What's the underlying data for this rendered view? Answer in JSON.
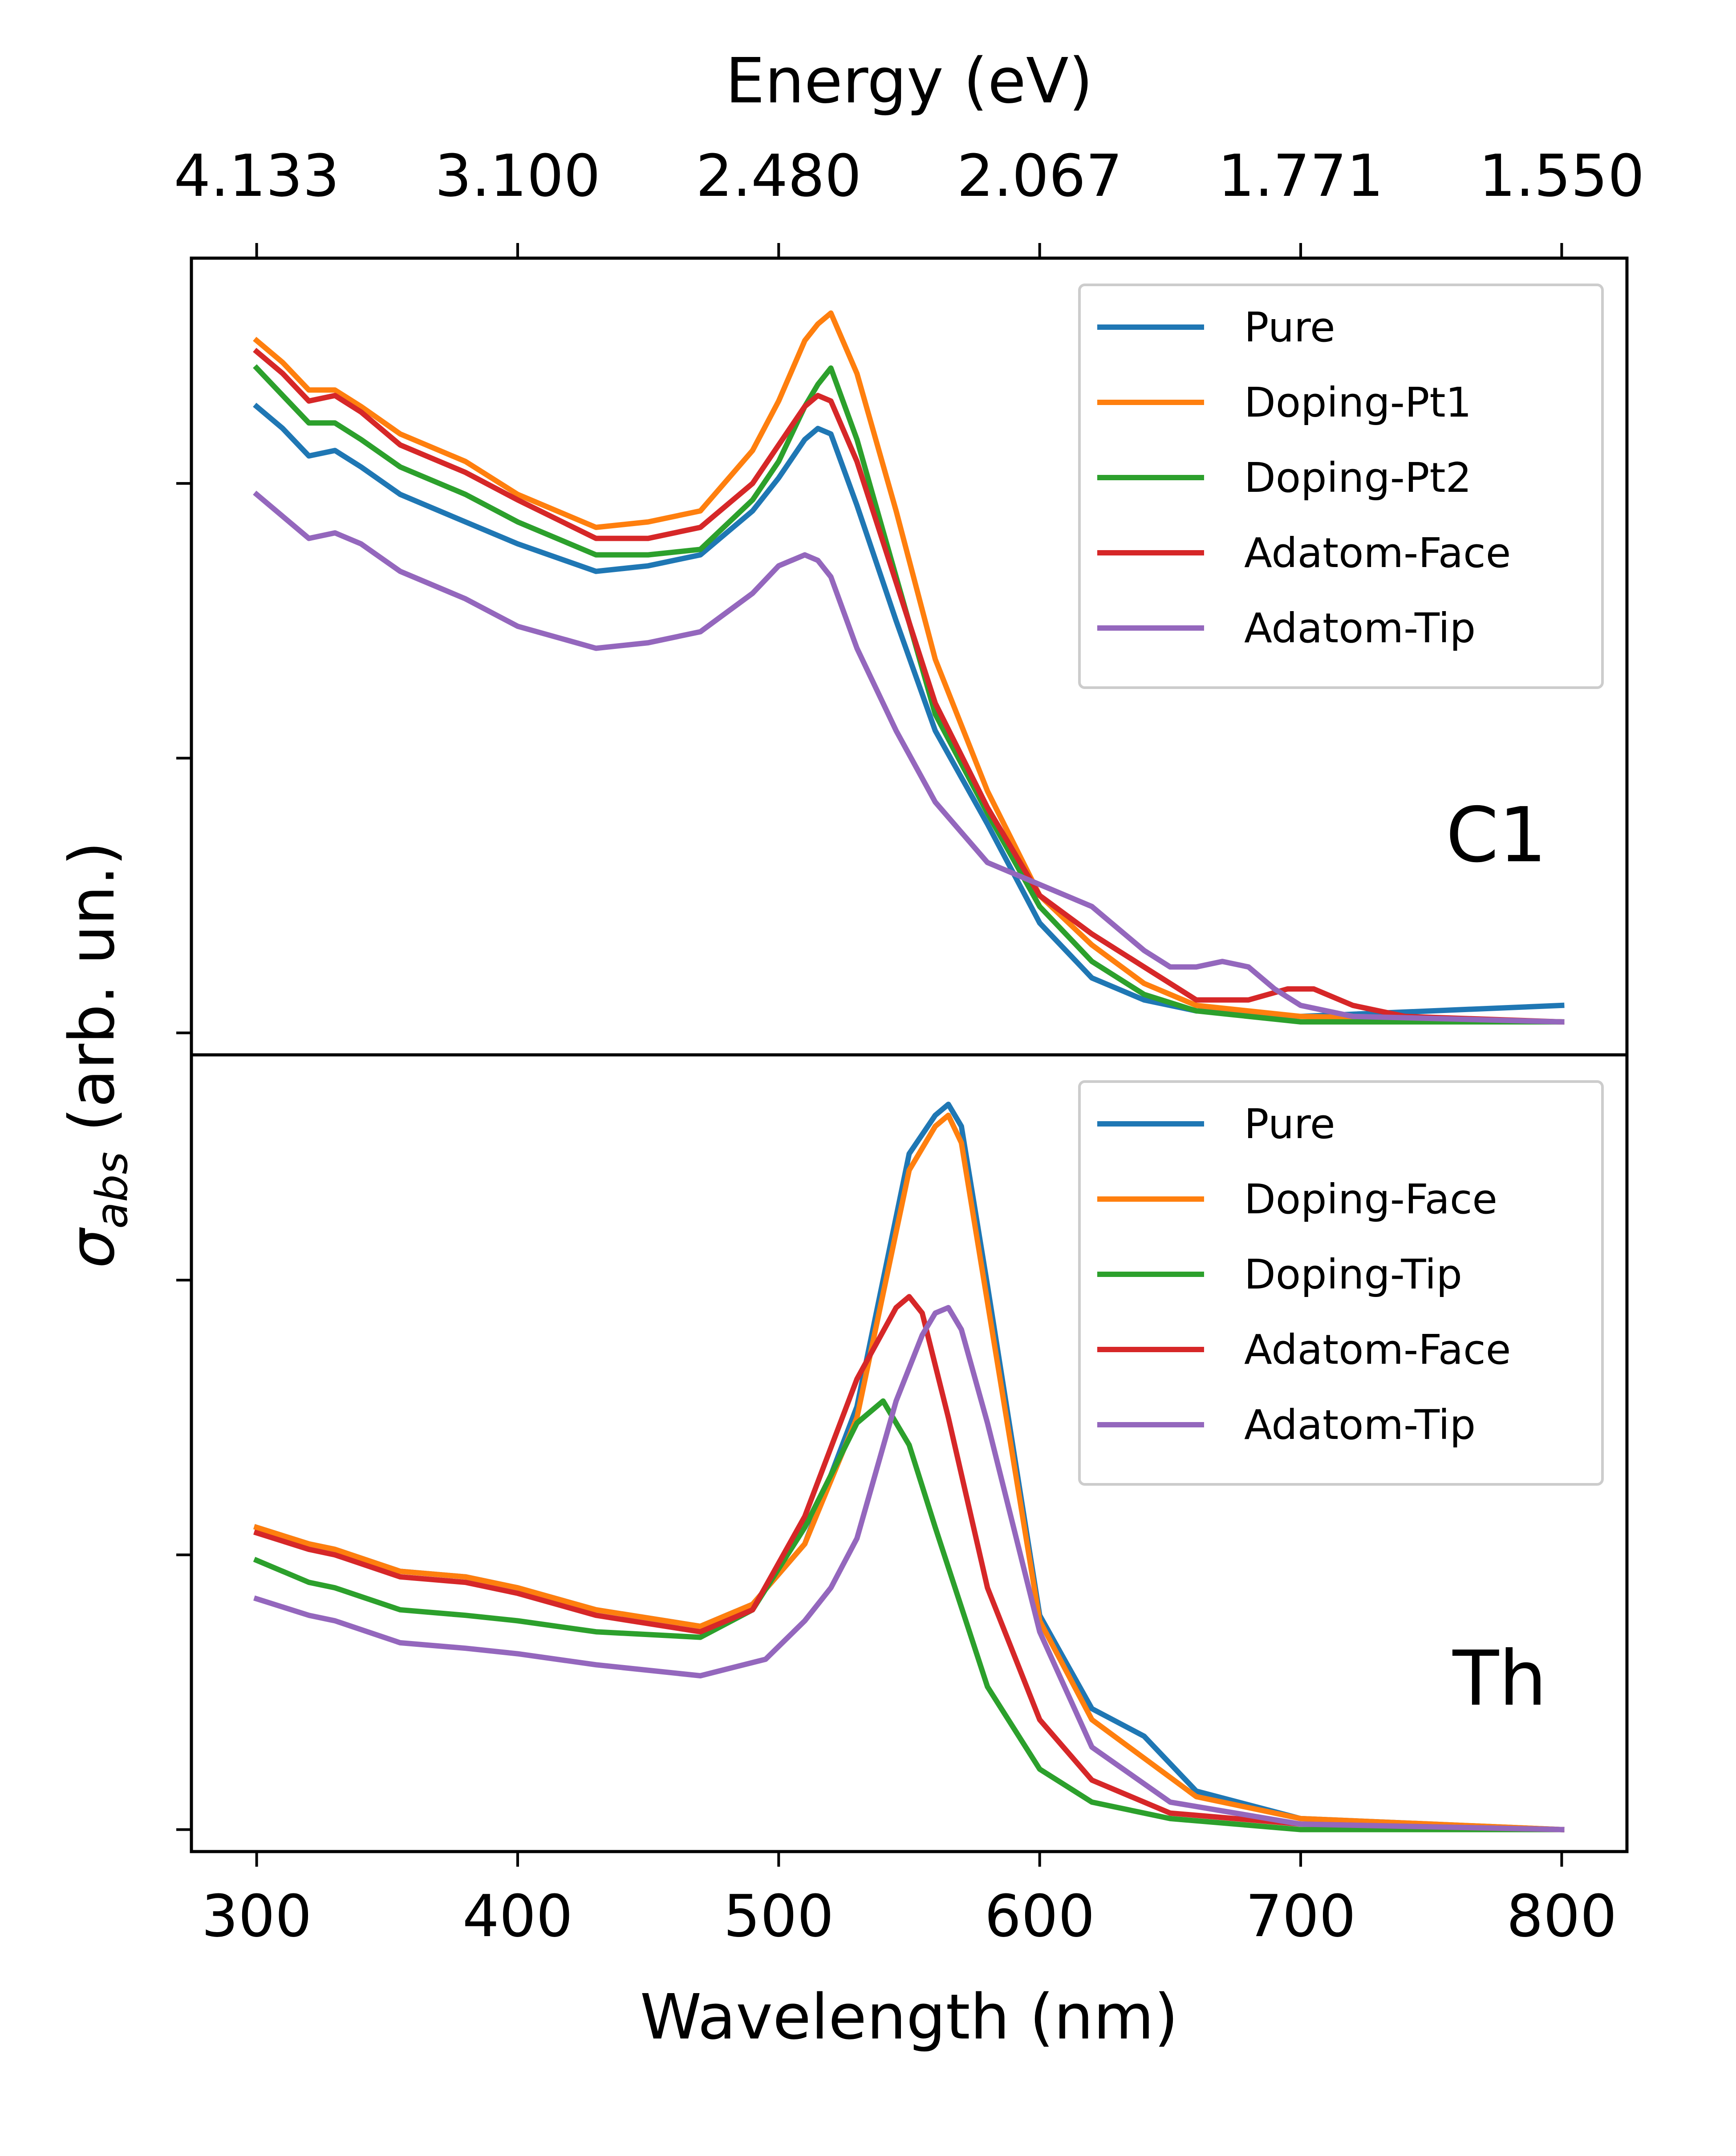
{
  "chart_data": [
    {
      "type": "line",
      "panel_label": "C1",
      "xlabel": "Wavelength (nm)",
      "xlim": [
        275,
        825
      ],
      "ylim": [
        -0.04,
        1.41
      ],
      "x_ticks": [
        300,
        400,
        500,
        600,
        700,
        800
      ],
      "secondary_xlabel": "Energy (eV)",
      "secondary_x_ticks": [
        "4.133",
        "3.100",
        "2.480",
        "2.067",
        "1.771",
        "1.550"
      ],
      "legend_position": "top-right",
      "series": [
        {
          "name": "Pure",
          "color": "#1f77b4",
          "x": [
            300,
            310,
            320,
            330,
            340,
            355,
            380,
            400,
            430,
            450,
            470,
            490,
            500,
            510,
            515,
            520,
            530,
            545,
            560,
            580,
            600,
            620,
            640,
            660,
            700,
            800
          ],
          "y": [
            1.14,
            1.1,
            1.05,
            1.06,
            1.03,
            0.98,
            0.93,
            0.89,
            0.84,
            0.85,
            0.87,
            0.95,
            1.01,
            1.08,
            1.1,
            1.09,
            0.96,
            0.75,
            0.55,
            0.38,
            0.2,
            0.1,
            0.06,
            0.04,
            0.03,
            0.05
          ]
        },
        {
          "name": "Doping-Pt1",
          "color": "#ff7f0e",
          "x": [
            300,
            310,
            320,
            330,
            340,
            355,
            380,
            400,
            430,
            450,
            470,
            490,
            500,
            510,
            515,
            520,
            530,
            545,
            560,
            580,
            600,
            620,
            640,
            660,
            700,
            800
          ],
          "y": [
            1.26,
            1.22,
            1.17,
            1.17,
            1.14,
            1.09,
            1.04,
            0.98,
            0.92,
            0.93,
            0.95,
            1.06,
            1.15,
            1.26,
            1.29,
            1.31,
            1.2,
            0.95,
            0.68,
            0.44,
            0.25,
            0.16,
            0.09,
            0.05,
            0.03,
            0.02
          ]
        },
        {
          "name": "Doping-Pt2",
          "color": "#2ca02c",
          "x": [
            300,
            310,
            320,
            330,
            340,
            355,
            380,
            400,
            430,
            450,
            470,
            490,
            500,
            510,
            515,
            520,
            530,
            545,
            560,
            580,
            600,
            620,
            640,
            660,
            700,
            800
          ],
          "y": [
            1.21,
            1.16,
            1.11,
            1.11,
            1.08,
            1.03,
            0.98,
            0.93,
            0.87,
            0.87,
            0.88,
            0.97,
            1.04,
            1.14,
            1.18,
            1.21,
            1.08,
            0.83,
            0.58,
            0.4,
            0.23,
            0.13,
            0.07,
            0.04,
            0.02,
            0.02
          ]
        },
        {
          "name": "Adatom-Face",
          "color": "#d62728",
          "x": [
            300,
            310,
            320,
            330,
            340,
            355,
            380,
            400,
            430,
            450,
            470,
            490,
            500,
            510,
            515,
            520,
            530,
            545,
            560,
            580,
            600,
            620,
            640,
            660,
            680,
            695,
            705,
            720,
            740,
            800
          ],
          "y": [
            1.24,
            1.2,
            1.15,
            1.16,
            1.13,
            1.07,
            1.02,
            0.97,
            0.9,
            0.9,
            0.92,
            1.0,
            1.07,
            1.14,
            1.16,
            1.15,
            1.04,
            0.82,
            0.6,
            0.41,
            0.25,
            0.18,
            0.12,
            0.06,
            0.06,
            0.08,
            0.08,
            0.05,
            0.03,
            0.02
          ]
        },
        {
          "name": "Adatom-Tip",
          "color": "#9467bd",
          "x": [
            300,
            310,
            320,
            330,
            340,
            355,
            380,
            400,
            430,
            450,
            470,
            490,
            500,
            510,
            515,
            520,
            530,
            545,
            560,
            580,
            600,
            620,
            630,
            640,
            650,
            660,
            670,
            680,
            690,
            700,
            720,
            800
          ],
          "y": [
            0.98,
            0.94,
            0.9,
            0.91,
            0.89,
            0.84,
            0.79,
            0.74,
            0.7,
            0.71,
            0.73,
            0.8,
            0.85,
            0.87,
            0.86,
            0.83,
            0.7,
            0.55,
            0.42,
            0.31,
            0.27,
            0.23,
            0.19,
            0.15,
            0.12,
            0.12,
            0.13,
            0.12,
            0.08,
            0.05,
            0.03,
            0.02
          ]
        }
      ]
    },
    {
      "type": "line",
      "panel_label": "Th",
      "xlabel": "Wavelength (nm)",
      "xlim": [
        275,
        825
      ],
      "ylim": [
        -0.04,
        1.41
      ],
      "x_ticks": [
        300,
        400,
        500,
        600,
        700,
        800
      ],
      "legend_position": "top-right",
      "series": [
        {
          "name": "Pure",
          "color": "#1f77b4",
          "x": [
            300,
            320,
            330,
            355,
            380,
            400,
            430,
            470,
            490,
            510,
            530,
            550,
            560,
            565,
            570,
            580,
            600,
            620,
            640,
            660,
            700,
            800
          ],
          "y": [
            0.55,
            0.52,
            0.51,
            0.47,
            0.46,
            0.44,
            0.4,
            0.37,
            0.41,
            0.52,
            0.77,
            1.23,
            1.3,
            1.32,
            1.28,
            0.99,
            0.39,
            0.22,
            0.17,
            0.07,
            0.02,
            0.0
          ]
        },
        {
          "name": "Doping-Face",
          "color": "#ff7f0e",
          "x": [
            300,
            320,
            330,
            355,
            380,
            400,
            430,
            470,
            490,
            510,
            530,
            550,
            560,
            565,
            570,
            580,
            600,
            620,
            640,
            660,
            700,
            800
          ],
          "y": [
            0.55,
            0.52,
            0.51,
            0.47,
            0.46,
            0.44,
            0.4,
            0.37,
            0.41,
            0.52,
            0.75,
            1.2,
            1.28,
            1.3,
            1.25,
            0.96,
            0.38,
            0.2,
            0.13,
            0.06,
            0.02,
            0.0
          ]
        },
        {
          "name": "Doping-Tip",
          "color": "#2ca02c",
          "x": [
            300,
            320,
            330,
            355,
            380,
            400,
            430,
            470,
            490,
            510,
            530,
            540,
            550,
            560,
            580,
            600,
            620,
            650,
            700,
            800
          ],
          "y": [
            0.49,
            0.45,
            0.44,
            0.4,
            0.39,
            0.38,
            0.36,
            0.35,
            0.4,
            0.55,
            0.74,
            0.78,
            0.7,
            0.55,
            0.26,
            0.11,
            0.05,
            0.02,
            0.0,
            0.0
          ]
        },
        {
          "name": "Adatom-Face",
          "color": "#d62728",
          "x": [
            300,
            320,
            330,
            355,
            380,
            400,
            430,
            470,
            490,
            510,
            530,
            545,
            550,
            555,
            565,
            580,
            600,
            620,
            650,
            700,
            800
          ],
          "y": [
            0.54,
            0.51,
            0.5,
            0.46,
            0.45,
            0.43,
            0.39,
            0.36,
            0.4,
            0.57,
            0.82,
            0.95,
            0.97,
            0.94,
            0.75,
            0.44,
            0.2,
            0.09,
            0.03,
            0.01,
            0.0
          ]
        },
        {
          "name": "Adatom-Tip",
          "color": "#9467bd",
          "x": [
            300,
            320,
            330,
            355,
            380,
            400,
            430,
            470,
            495,
            510,
            520,
            530,
            545,
            555,
            560,
            565,
            570,
            580,
            600,
            620,
            650,
            700,
            800
          ],
          "y": [
            0.42,
            0.39,
            0.38,
            0.34,
            0.33,
            0.32,
            0.3,
            0.28,
            0.31,
            0.38,
            0.44,
            0.53,
            0.78,
            0.9,
            0.94,
            0.95,
            0.91,
            0.74,
            0.36,
            0.15,
            0.05,
            0.01,
            0.0
          ]
        }
      ]
    }
  ],
  "shared_ylabel_prefix": "σ",
  "shared_ylabel_subscript": "abs",
  "shared_ylabel_suffix": " (arb. un.)"
}
